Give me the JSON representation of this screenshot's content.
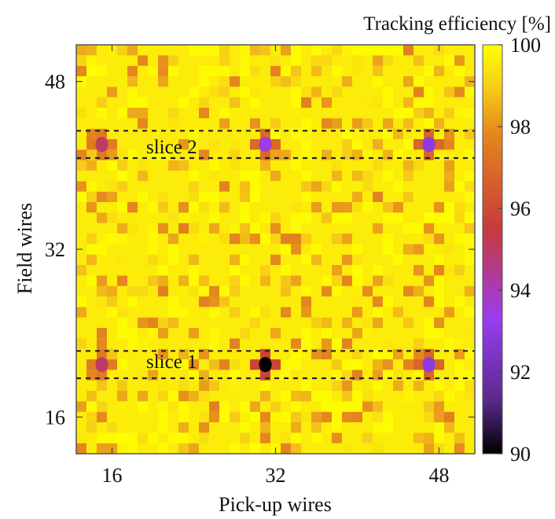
{
  "chart_data": {
    "type": "heatmap",
    "title": "",
    "xlabel": "Pick-up wires",
    "ylabel": "Field wires",
    "colorbar_label": "Tracking efficiency [%]",
    "xlim": [
      12.5,
      51.5
    ],
    "ylim": [
      12.5,
      51.5
    ],
    "x_ticks": [
      16,
      32,
      48
    ],
    "y_ticks": [
      16,
      32,
      48
    ],
    "colorbar_ticks": [
      90,
      92,
      94,
      96,
      98,
      100
    ],
    "colorbar_range": [
      90,
      100
    ],
    "background_efficiency": 99.6,
    "hotspots": [
      {
        "x": 15,
        "y": 42,
        "value": 95.0
      },
      {
        "x": 31,
        "y": 42,
        "value": 93.5
      },
      {
        "x": 47,
        "y": 42,
        "value": 93.0
      },
      {
        "x": 15,
        "y": 21,
        "value": 95.0
      },
      {
        "x": 31,
        "y": 21,
        "value": 90.0
      },
      {
        "x": 47,
        "y": 21,
        "value": 93.0
      }
    ],
    "slices": [
      {
        "label": "slice 2",
        "y_bounds": [
          40.7,
          43.3
        ]
      },
      {
        "label": "slice 1",
        "y_bounds": [
          19.7,
          22.3
        ]
      }
    ],
    "colormap": [
      "#000000",
      "#5a2a8a",
      "#9a3cf0",
      "#c83a3a",
      "#e4861e",
      "#f7cf17",
      "#ffff00"
    ]
  }
}
